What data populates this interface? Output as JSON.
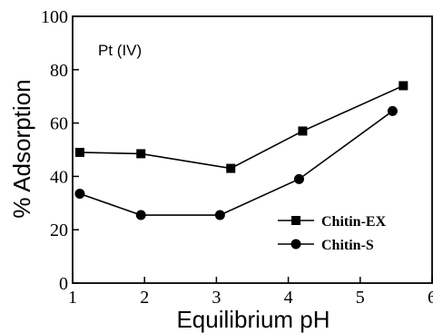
{
  "chart_data": {
    "type": "line",
    "title": "",
    "xlabel": "Equilibrium pH",
    "ylabel": "% Adsorption",
    "xlim": [
      1,
      6
    ],
    "ylim": [
      0,
      100
    ],
    "x_ticks": [
      1,
      2,
      3,
      4,
      5,
      6
    ],
    "y_ticks": [
      0,
      20,
      40,
      60,
      80,
      100
    ],
    "grid": false,
    "legend_position": "bottom-right",
    "annotation": "Pt (IV)",
    "series": [
      {
        "name": "Chitin-EX",
        "marker": "square",
        "points": [
          [
            1.1,
            49
          ],
          [
            1.95,
            48.5
          ],
          [
            3.2,
            43
          ],
          [
            4.2,
            57
          ],
          [
            5.6,
            74
          ]
        ]
      },
      {
        "name": "Chitin-S",
        "marker": "circle",
        "points": [
          [
            1.1,
            33.5
          ],
          [
            1.95,
            25.5
          ],
          [
            3.05,
            25.5
          ],
          [
            4.15,
            39
          ],
          [
            5.45,
            64.5
          ]
        ]
      }
    ]
  }
}
